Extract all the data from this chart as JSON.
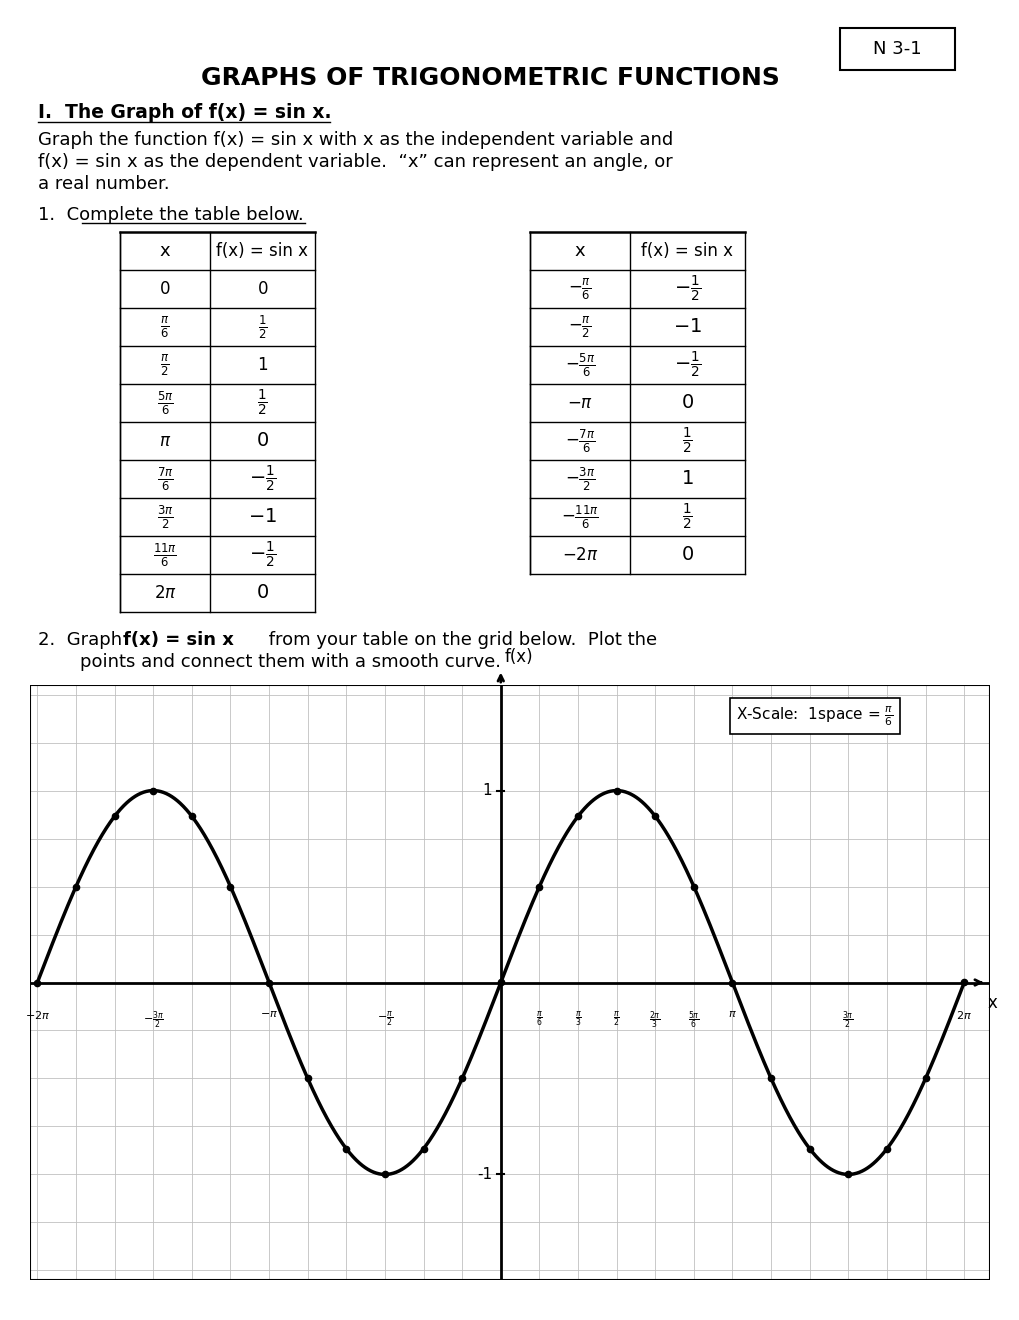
{
  "title": "GRAPHS OF TRIGONOMETRIC FUNCTIONS",
  "label_num": "N 3-1",
  "bg_color": "#ffffff",
  "grid_color": "#c0c0c0",
  "curve_color": "#000000",
  "text_color": "#000000",
  "table1_x_labels": [
    "0",
    "\\pi/6",
    "\\pi/2",
    "5\\pi/6",
    "\\pi",
    "7\\pi/6",
    "3\\pi/2",
    "11\\pi/6",
    "2\\pi"
  ],
  "table1_fx_typed": [
    "0",
    "1/2",
    "1"
  ],
  "table1_fx_hw": [
    "1/2",
    "0",
    "-1/2",
    "-1",
    "-1/2",
    "0"
  ],
  "table2_x_labels": [
    "-\\pi/6",
    "-\\pi/2",
    "-5\\pi/6",
    "-\\pi",
    "-7\\pi/6",
    "-3\\pi/2",
    "-11\\pi/6",
    "-2\\pi"
  ],
  "table2_fx_hw": [
    "-1/2",
    "-1",
    "-1/2",
    "0",
    "1/2",
    "1",
    "1/2",
    "0"
  ]
}
